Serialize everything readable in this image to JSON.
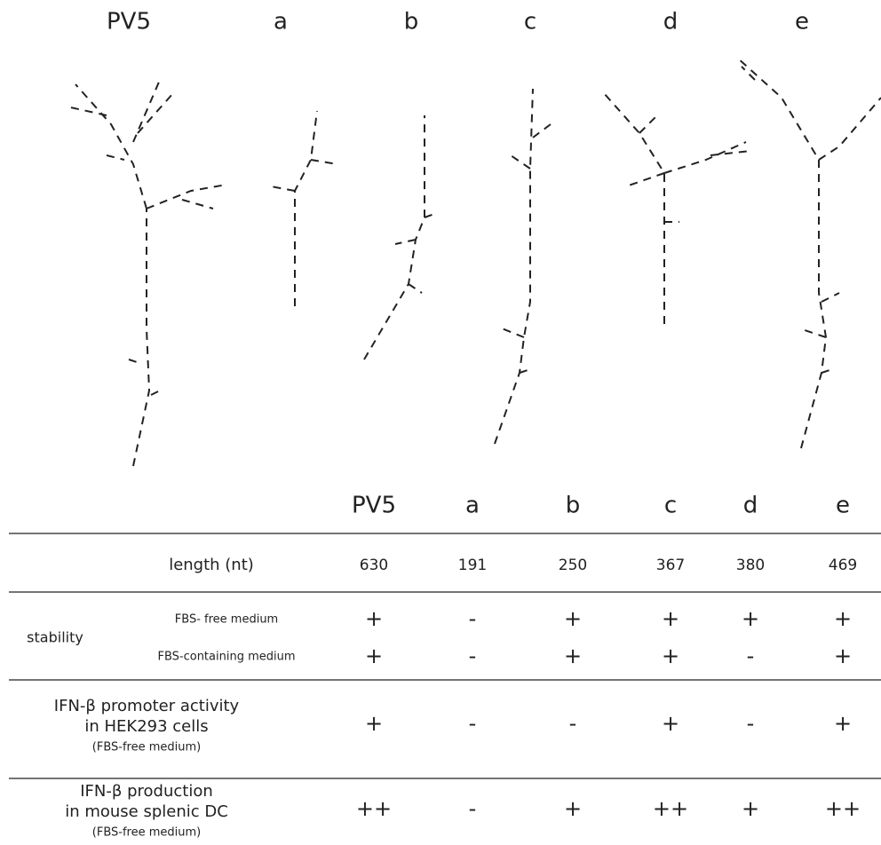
{
  "structures": {
    "labels": [
      "PV5",
      "a",
      "b",
      "c",
      "d",
      "e"
    ]
  },
  "table": {
    "columns": [
      "PV5",
      "a",
      "b",
      "c",
      "d",
      "e"
    ],
    "rows": [
      {
        "label_lines": [
          "length (nt)"
        ],
        "cells": [
          630,
          191,
          250,
          367,
          380,
          469
        ]
      },
      {
        "group": "stability",
        "label_lines": [
          "FBS- free medium"
        ],
        "cells": [
          "+",
          "-",
          "+",
          "+",
          "+",
          "+"
        ]
      },
      {
        "label_lines": [
          "FBS-containing medium"
        ],
        "cells": [
          "+",
          "-",
          "+",
          "+",
          "-",
          "+"
        ]
      },
      {
        "label_lines": [
          "IFN-β promoter activity",
          "in HEK293 cells",
          "(FBS-free medium)"
        ],
        "cells": [
          "+",
          "-",
          "-",
          "+",
          "-",
          "+"
        ]
      },
      {
        "label_lines": [
          "IFN-β production",
          "in mouse splenic DC",
          "(FBS-free medium)"
        ],
        "cells": [
          "++",
          "-",
          "+",
          "++",
          "+",
          "++"
        ]
      }
    ]
  }
}
